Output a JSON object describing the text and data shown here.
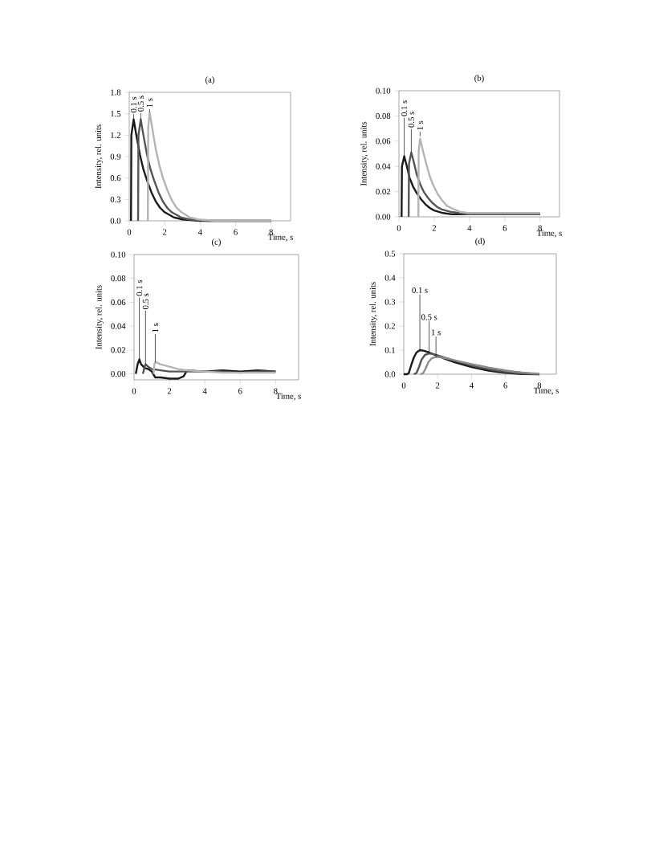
{
  "chart_data": [
    {
      "type": "line",
      "title": "(a)",
      "xlabel": "Time, s",
      "ylabel": "Intensity, rel. units",
      "xlim": [
        0,
        9.1
      ],
      "ylim": [
        0,
        1.8
      ],
      "xticks": [
        0,
        2,
        4,
        6,
        8
      ],
      "yticks": [
        {
          "value": 0,
          "label": "0.0"
        },
        0.3,
        0.6,
        0.9,
        1.2,
        1.5,
        1.8
      ],
      "series": [
        {
          "color": "#1a1a1a",
          "x": [
            0.1,
            0.12,
            0.25,
            0.4,
            0.6,
            0.8,
            1.0,
            1.25,
            1.5,
            1.75,
            2.0,
            2.5,
            3.0,
            3.5,
            4.0,
            5,
            6,
            7,
            8
          ],
          "values": [
            0,
            1.2,
            1.42,
            1.2,
            0.93,
            0.72,
            0.57,
            0.4,
            0.27,
            0.18,
            0.12,
            0.05,
            0.02,
            0.01,
            0,
            0,
            0,
            0,
            0
          ]
        },
        {
          "color": "#555555",
          "x": [
            0.5,
            0.52,
            0.65,
            0.8,
            1.0,
            1.2,
            1.4,
            1.65,
            1.9,
            2.15,
            2.4,
            2.9,
            3.4,
            3.9,
            4.4,
            5,
            6,
            7,
            8
          ],
          "values": [
            0,
            1.2,
            1.42,
            1.2,
            0.93,
            0.72,
            0.57,
            0.4,
            0.27,
            0.18,
            0.12,
            0.05,
            0.02,
            0.01,
            0,
            0,
            0,
            0,
            0
          ]
        },
        {
          "color": "#b4b4b4",
          "x": [
            1.05,
            1.07,
            1.15,
            1.3,
            1.5,
            1.7,
            1.9,
            2.15,
            2.4,
            2.65,
            2.9,
            3.4,
            3.9,
            4.4,
            4.9,
            6,
            7,
            8
          ],
          "values": [
            0,
            1.3,
            1.52,
            1.3,
            1.0,
            0.78,
            0.6,
            0.43,
            0.29,
            0.19,
            0.13,
            0.05,
            0.02,
            0.01,
            0,
            0,
            0,
            0
          ]
        }
      ],
      "annotations": [
        {
          "text": "0.1 s",
          "x": 0.25,
          "y": 1.42
        },
        {
          "text": "0.5 s",
          "x": 0.65,
          "y": 1.42
        },
        {
          "text": "1 s",
          "x": 1.15,
          "y": 1.52
        }
      ]
    },
    {
      "type": "line",
      "title": "(b)",
      "xlabel": "Time, s",
      "ylabel": "Intensity, rel. units",
      "xlim": [
        0,
        9.1
      ],
      "ylim": [
        0,
        0.1
      ],
      "xticks": [
        0,
        2,
        4,
        6,
        8
      ],
      "yticks": [
        {
          "value": 0,
          "label": "0.00"
        },
        {
          "value": 0.02,
          "label": "0.02"
        },
        {
          "value": 0.04,
          "label": "0.04"
        },
        {
          "value": 0.06,
          "label": "0.06"
        },
        {
          "value": 0.08,
          "label": "0.08"
        },
        {
          "value": 0.1,
          "label": "0.10"
        }
      ],
      "series": [
        {
          "color": "#1a1a1a",
          "x": [
            0.15,
            0.17,
            0.3,
            0.45,
            0.6,
            0.8,
            1.0,
            1.25,
            1.5,
            1.75,
            2.0,
            2.5,
            3.0,
            3.5,
            4.0,
            5,
            6,
            7,
            8
          ],
          "values": [
            0,
            0.04,
            0.048,
            0.04,
            0.031,
            0.024,
            0.019,
            0.014,
            0.01,
            0.007,
            0.005,
            0.003,
            0.002,
            0.002,
            0.002,
            0.002,
            0.002,
            0.002,
            0.002
          ]
        },
        {
          "color": "#555555",
          "x": [
            0.55,
            0.57,
            0.7,
            0.85,
            1.0,
            1.2,
            1.4,
            1.65,
            1.9,
            2.15,
            2.4,
            2.9,
            3.4,
            3.9,
            4.4,
            5,
            6,
            7,
            8
          ],
          "values": [
            0,
            0.042,
            0.051,
            0.043,
            0.034,
            0.026,
            0.02,
            0.015,
            0.011,
            0.008,
            0.006,
            0.004,
            0.003,
            0.002,
            0.002,
            0.002,
            0.002,
            0.002,
            0.002
          ]
        },
        {
          "color": "#b4b4b4",
          "x": [
            1.1,
            1.12,
            1.2,
            1.35,
            1.55,
            1.75,
            1.95,
            2.2,
            2.45,
            2.7,
            2.95,
            3.45,
            3.95,
            4.45,
            5,
            6,
            7,
            8
          ],
          "values": [
            0,
            0.052,
            0.062,
            0.053,
            0.042,
            0.032,
            0.025,
            0.018,
            0.013,
            0.009,
            0.007,
            0.004,
            0.003,
            0.003,
            0.003,
            0.003,
            0.003,
            0.003
          ]
        }
      ],
      "annotations": [
        {
          "text": "0.1 s",
          "x": 0.3,
          "y": 0.048
        },
        {
          "text": "0.5 s",
          "x": 0.7,
          "y": 0.051
        },
        {
          "text": "1 s",
          "x": 1.2,
          "y": 0.064
        }
      ]
    },
    {
      "type": "line",
      "title": "(c)",
      "xlabel": "Time, s",
      "ylabel": "Intensity, rel. units",
      "xlim": [
        0,
        9.3
      ],
      "ylim": [
        -0.005,
        0.1
      ],
      "xticks": [
        0,
        2,
        4,
        6,
        8
      ],
      "yticks": [
        {
          "value": 0,
          "label": "0.00"
        },
        {
          "value": 0.02,
          "label": "0.02"
        },
        {
          "value": 0.04,
          "label": "0.04"
        },
        {
          "value": 0.06,
          "label": "0.06"
        },
        {
          "value": 0.08,
          "label": "0.08"
        },
        {
          "value": 0.1,
          "label": "0.10"
        }
      ],
      "series": [
        {
          "color": "#1a1a1a",
          "x": [
            0.1,
            0.2,
            0.3,
            0.4,
            0.6,
            0.8,
            1.0,
            1.2,
            1.5,
            2.0,
            2.5,
            2.8,
            3,
            4,
            5,
            6,
            7,
            8
          ],
          "values": [
            0,
            0.008,
            0.012,
            0.008,
            0.005,
            0.004,
            0.002,
            -0.003,
            -0.003,
            -0.004,
            -0.004,
            -0.002,
            0.003,
            0.002,
            0.003,
            0.002,
            0.003,
            0.002
          ]
        },
        {
          "color": "#555555",
          "x": [
            0.5,
            0.6,
            0.65,
            0.8,
            1.0,
            1.5,
            2,
            3,
            4,
            5,
            6,
            7,
            8
          ],
          "values": [
            0,
            0.006,
            0.008,
            0.006,
            0.004,
            0.003,
            0.002,
            0.002,
            0.002,
            0.002,
            0.001,
            0.002,
            0.002
          ]
        },
        {
          "color": "#b4b4b4",
          "x": [
            1.1,
            1.15,
            1.2,
            1.5,
            2,
            2.5,
            3,
            4,
            5,
            6,
            7,
            8
          ],
          "values": [
            0,
            0.008,
            0.01,
            0.008,
            0.006,
            0.004,
            0.003,
            0.002,
            0.001,
            0.001,
            0.001,
            0.001
          ]
        }
      ],
      "annotations": [
        {
          "text": "0.1 s",
          "x": 0.3,
          "y": 0.012
        },
        {
          "text": "0.5 s",
          "x": 0.65,
          "y": 0.008
        },
        {
          "text": "1 s",
          "x": 1.2,
          "y": 0.01
        }
      ]
    },
    {
      "type": "line",
      "title": "(d)",
      "xlabel": "Time, s",
      "ylabel": "Intensity, rel. units",
      "xlim": [
        0,
        9
      ],
      "ylim": [
        0,
        0.5
      ],
      "xticks": [
        0,
        2,
        4,
        6,
        8
      ],
      "yticks": [
        {
          "value": 0,
          "label": "0.0"
        },
        0.1,
        0.2,
        0.3,
        0.4,
        0.5
      ],
      "series": [
        {
          "color": "#1a1a1a",
          "x": [
            0,
            0.2,
            0.3,
            0.45,
            0.6,
            0.75,
            0.95,
            1.2,
            1.5,
            2,
            2.5,
            3,
            3.5,
            4,
            4.5,
            5,
            5.5,
            6,
            6.5,
            7,
            8
          ],
          "values": [
            0,
            0,
            0.005,
            0.04,
            0.07,
            0.09,
            0.1,
            0.097,
            0.09,
            0.076,
            0.062,
            0.05,
            0.04,
            0.03,
            0.022,
            0.015,
            0.01,
            0.006,
            0.003,
            0.001,
            0
          ]
        },
        {
          "color": "#555555",
          "x": [
            0.6,
            0.75,
            0.9,
            1.05,
            1.25,
            1.5,
            1.8,
            2.2,
            2.6,
            3,
            3.5,
            4,
            4.5,
            5,
            5.5,
            6,
            6.5,
            7,
            8
          ],
          "values": [
            0,
            0.005,
            0.03,
            0.06,
            0.08,
            0.086,
            0.082,
            0.074,
            0.065,
            0.056,
            0.046,
            0.036,
            0.028,
            0.021,
            0.015,
            0.01,
            0.006,
            0.003,
            0
          ]
        },
        {
          "color": "#8c8c8c",
          "x": [
            1.0,
            1.15,
            1.3,
            1.45,
            1.65,
            1.9,
            2.2,
            2.6,
            3,
            3.5,
            4,
            4.5,
            5,
            5.5,
            6,
            6.5,
            7,
            7.5,
            8
          ],
          "values": [
            0,
            0.005,
            0.025,
            0.05,
            0.066,
            0.072,
            0.07,
            0.065,
            0.058,
            0.05,
            0.042,
            0.035,
            0.028,
            0.022,
            0.016,
            0.011,
            0.007,
            0.004,
            0.002
          ]
        }
      ],
      "annotations": [
        {
          "text": "0.1 s",
          "x": 0.95,
          "y": 0.1
        },
        {
          "text": "0.5 s",
          "x": 1.5,
          "y": 0.086
        },
        {
          "text": "1 s",
          "x": 1.9,
          "y": 0.072
        }
      ]
    }
  ]
}
